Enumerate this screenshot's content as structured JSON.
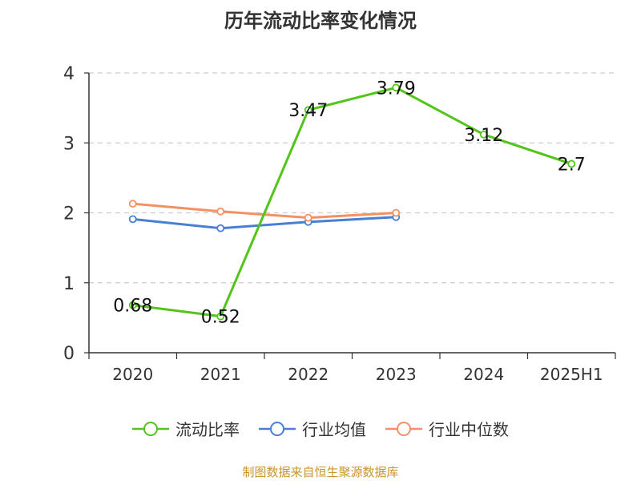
{
  "title": "历年流动比率变化情况",
  "source": "制图数据来自恒生聚源数据库",
  "chart_data": {
    "type": "line",
    "categories": [
      "2020",
      "2021",
      "2022",
      "2023",
      "2024",
      "2025H1"
    ],
    "ylim": [
      0,
      4
    ],
    "yticks": [
      0,
      1,
      2,
      3,
      4
    ],
    "grid": true,
    "legend_position": "bottom",
    "series": [
      {
        "name": "流动比率",
        "color": "#52c41a",
        "values": [
          0.68,
          0.52,
          3.47,
          3.79,
          3.12,
          2.7
        ],
        "labels": [
          "0.68",
          "0.52",
          "3.47",
          "3.79",
          "3.12",
          "2.7"
        ]
      },
      {
        "name": "行业均值",
        "color": "#4a7fd6",
        "values": [
          1.91,
          1.78,
          1.87,
          1.94,
          null,
          null
        ]
      },
      {
        "name": "行业中位数",
        "color": "#f59062",
        "values": [
          2.13,
          2.02,
          1.93,
          2.0,
          null,
          null
        ]
      }
    ]
  }
}
